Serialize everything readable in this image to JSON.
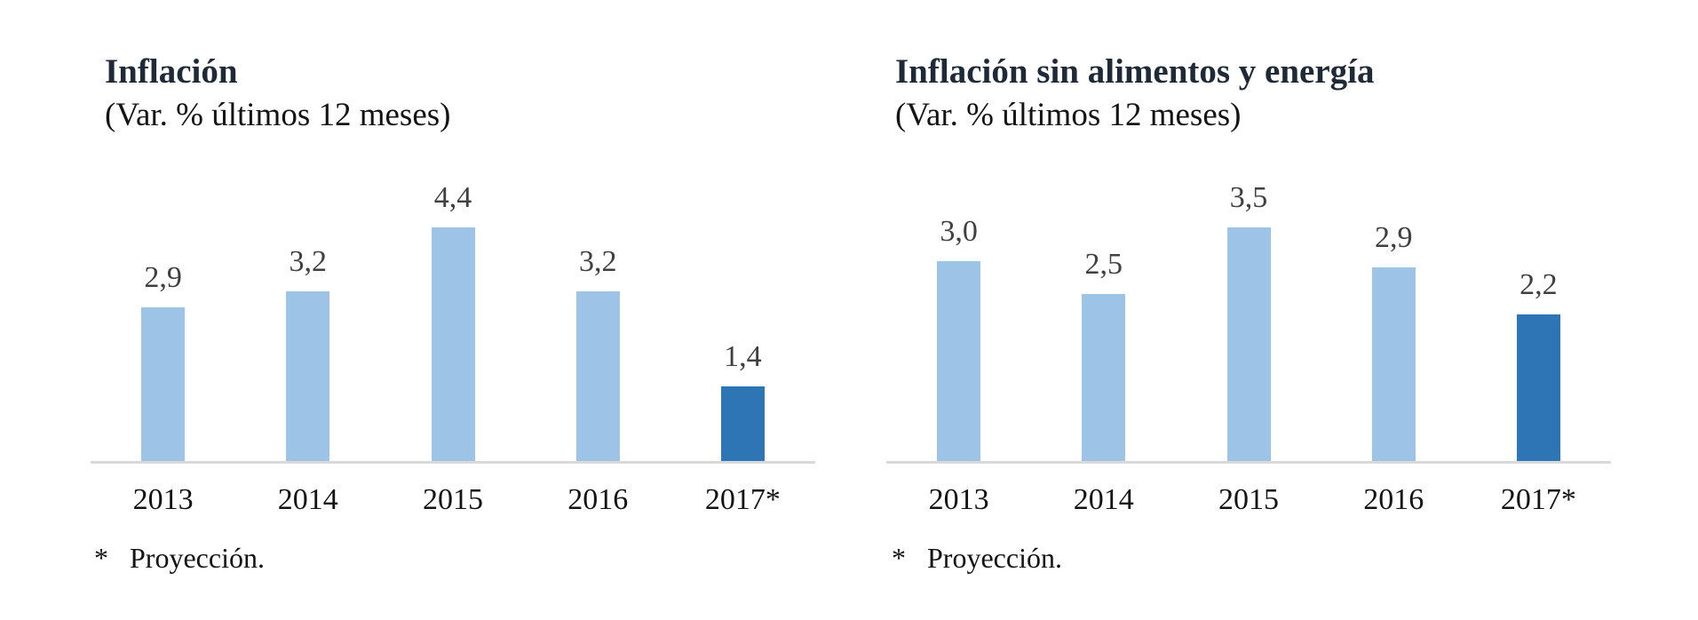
{
  "palette": {
    "background": "#ffffff",
    "title_color": "#1f2a38",
    "text_color": "#141414",
    "value_label_color": "#404040",
    "bar_color": "#9dc3e6",
    "highlight_bar_color": "#2e75b6",
    "axis_line_color": "#d9d9d9"
  },
  "chart_data": [
    {
      "type": "bar",
      "title": "Inflación",
      "subtitle": "(Var. % últimos 12 meses)",
      "categories": [
        "2013",
        "2014",
        "2015",
        "2016",
        "2017*"
      ],
      "values": [
        2.9,
        3.2,
        4.4,
        3.2,
        1.4
      ],
      "value_labels": [
        "2,9",
        "3,2",
        "4,4",
        "3,2",
        "1,4"
      ],
      "highlight_index": 4,
      "highlight_category": "2017*",
      "footnote_marker": "*",
      "footnote": "Proyección.",
      "xlabel": "",
      "ylabel": "",
      "ylim": [
        0,
        4.8
      ],
      "grid": false,
      "legend": false,
      "data_labels_position": "above-bars"
    },
    {
      "type": "bar",
      "title": "Inflación sin alimentos y energía",
      "subtitle": "(Var. % últimos 12 meses)",
      "categories": [
        "2013",
        "2014",
        "2015",
        "2016",
        "2017*"
      ],
      "values": [
        3.0,
        2.5,
        3.5,
        2.9,
        2.2
      ],
      "value_labels": [
        "3,0",
        "2,5",
        "3,5",
        "2,9",
        "2,2"
      ],
      "highlight_index": 4,
      "highlight_category": "2017*",
      "footnote_marker": "*",
      "footnote": "Proyección.",
      "xlabel": "",
      "ylabel": "",
      "ylim": [
        0,
        3.8
      ],
      "grid": false,
      "legend": false,
      "data_labels_position": "above-bars"
    }
  ]
}
